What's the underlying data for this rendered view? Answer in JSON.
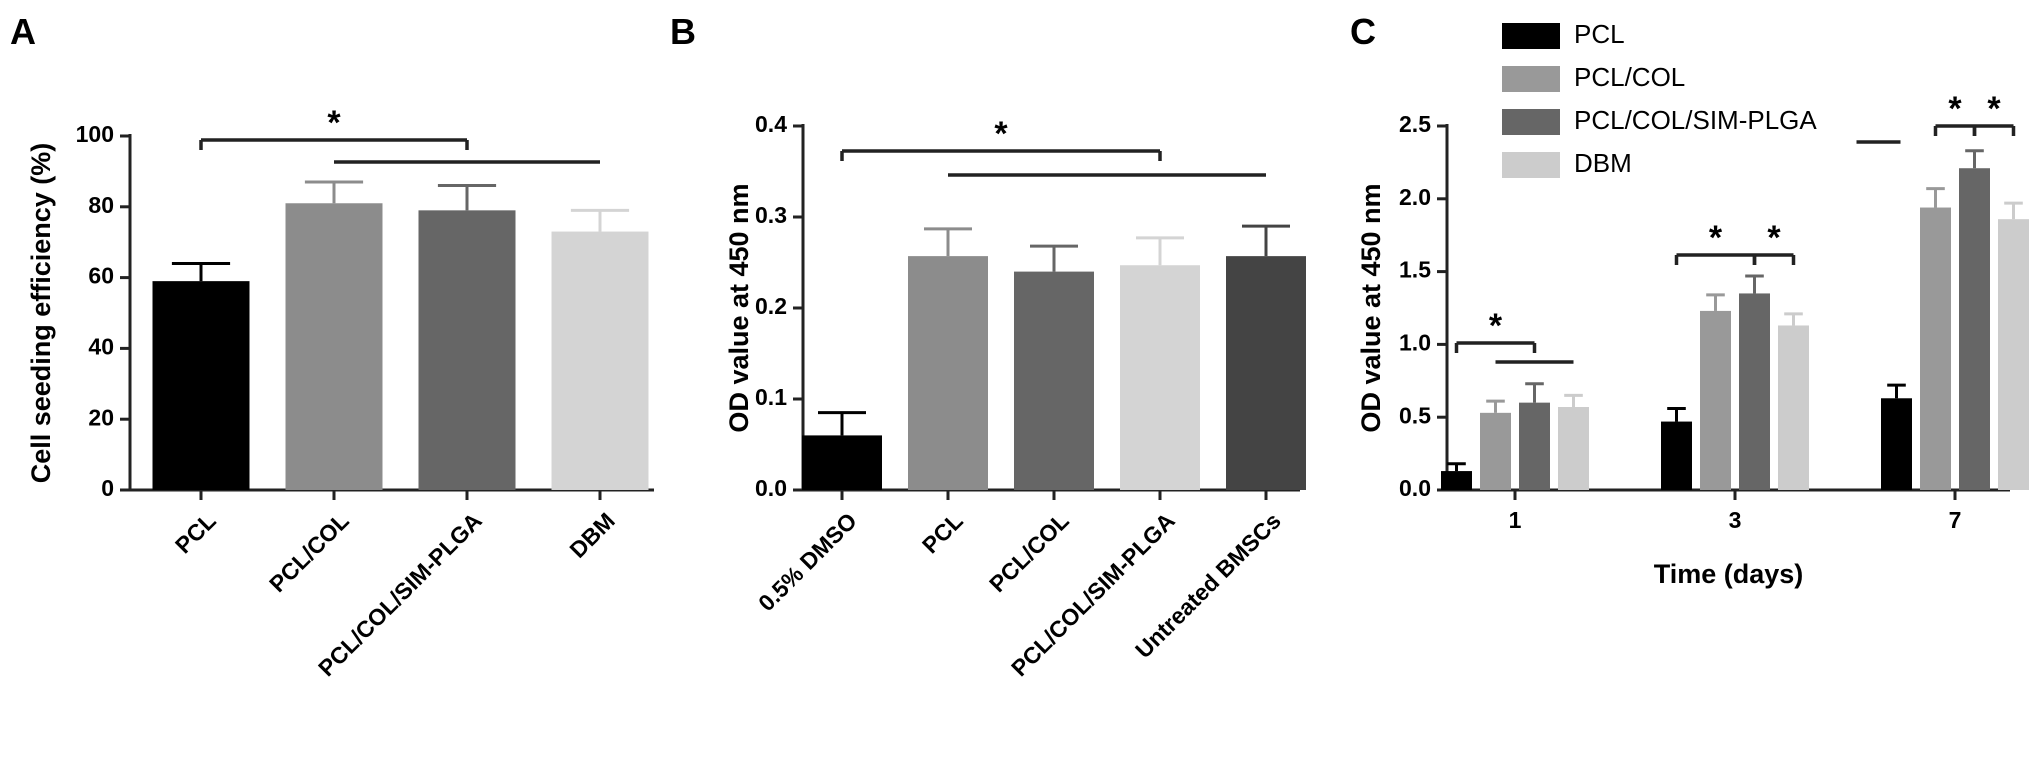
{
  "chart_data": [
    {
      "type": "bar",
      "panel_label": "A",
      "y_label": "Cell seeding efficiency (%)",
      "categories": [
        "PCL",
        "PCL/COL",
        "PCL/COL/SIM-PLGA",
        "DBM"
      ],
      "values": [
        59,
        81,
        79,
        73
      ],
      "errors": [
        5,
        6,
        7,
        6
      ],
      "colors": [
        "#000000",
        "#8c8c8c",
        "#666666",
        "#d4d4d4"
      ],
      "ylim": [
        0,
        100
      ],
      "yticks": [
        0,
        20,
        40,
        60,
        80,
        100
      ],
      "annotations": [
        "*"
      ]
    },
    {
      "type": "bar",
      "panel_label": "B",
      "y_label": "OD value at 450 nm",
      "categories": [
        "0.5% DMSO",
        "PCL",
        "PCL/COL",
        "PCL/COL/SIM-PLGA",
        "Untreated BMSCs"
      ],
      "values": [
        0.06,
        0.257,
        0.24,
        0.247,
        0.257
      ],
      "errors": [
        0.025,
        0.03,
        0.028,
        0.03,
        0.033
      ],
      "colors": [
        "#000000",
        "#8c8c8c",
        "#666666",
        "#d4d4d4",
        "#444444"
      ],
      "ylim": [
        0,
        0.4
      ],
      "yticks": [
        {
          "value": 0,
          "label": "0.0"
        },
        0.1,
        0.2,
        0.3,
        0.4
      ],
      "annotations": [
        "*"
      ]
    },
    {
      "type": "grouped_bar",
      "panel_label": "C",
      "y_label": "OD value at 450 nm",
      "x_label": "Time (days)",
      "categories": [
        "1",
        "3",
        "7"
      ],
      "series": [
        {
          "name": "PCL",
          "color": "#000000",
          "values": [
            0.13,
            0.47,
            0.63
          ],
          "errors": [
            0.05,
            0.09,
            0.09
          ]
        },
        {
          "name": "PCL/COL",
          "color": "#999999",
          "values": [
            0.53,
            1.23,
            1.94
          ],
          "errors": [
            0.08,
            0.11,
            0.13
          ]
        },
        {
          "name": "PCL/COL/SIM-PLGA",
          "color": "#666666",
          "values": [
            0.6,
            1.35,
            2.21
          ],
          "errors": [
            0.13,
            0.12,
            0.12
          ]
        },
        {
          "name": "DBM",
          "color": "#cccccc",
          "values": [
            0.57,
            1.13,
            1.86
          ],
          "errors": [
            0.08,
            0.08,
            0.11
          ]
        }
      ],
      "ylim": [
        0,
        2.5
      ],
      "yticks": [
        {
          "value": 0,
          "label": "0.0"
        },
        0.5,
        {
          "value": 1,
          "label": "1.0"
        },
        1.5,
        {
          "value": 2,
          "label": "2.0"
        },
        2.5
      ],
      "annotations": [
        "*",
        "*",
        "*",
        "*",
        "*"
      ]
    }
  ]
}
